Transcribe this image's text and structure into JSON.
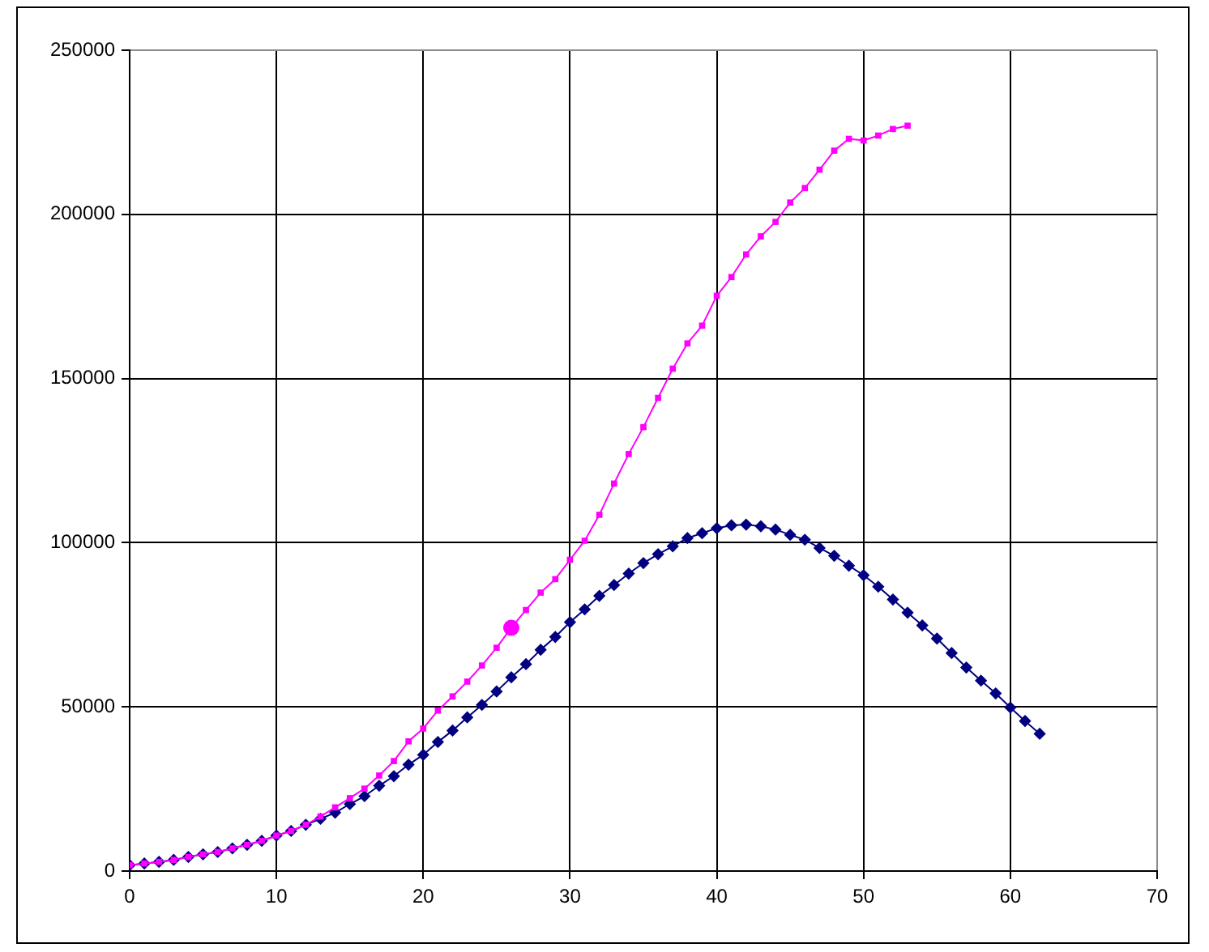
{
  "chart_data": {
    "type": "line",
    "xlim": [
      0,
      70
    ],
    "xticks": [
      0,
      10,
      20,
      30,
      40,
      50,
      60,
      70
    ],
    "ylim": [
      0,
      250000
    ],
    "yticks": [
      0,
      50000,
      100000,
      150000,
      200000,
      250000
    ],
    "grid": true,
    "series": [
      {
        "color": "#000080",
        "marker": "diamond",
        "x": [
          0,
          1,
          2,
          3,
          4,
          5,
          6,
          7,
          8,
          9,
          10,
          11,
          12,
          13,
          14,
          15,
          16,
          17,
          18,
          19,
          20,
          21,
          22,
          23,
          24,
          25,
          26,
          27,
          28,
          29,
          30,
          31,
          32,
          33,
          34,
          35,
          36,
          37,
          38,
          39,
          40,
          41,
          42,
          43,
          44,
          45,
          46,
          47,
          48,
          49,
          50,
          51,
          52,
          53,
          54,
          55,
          56,
          57,
          58,
          59,
          60,
          61,
          62
        ],
        "values": [
          1800,
          2300,
          2800,
          3400,
          4300,
          5100,
          5800,
          6900,
          8000,
          9200,
          10800,
          12200,
          14100,
          15900,
          17800,
          20400,
          22800,
          26000,
          28900,
          32400,
          35400,
          39300,
          42800,
          46800,
          50600,
          54700,
          59000,
          63000,
          67400,
          71300,
          75800,
          79700,
          83800,
          87100,
          90600,
          93800,
          96500,
          98900,
          101400,
          102900,
          104400,
          105300,
          105500,
          105000,
          104000,
          102400,
          100900,
          98400,
          96000,
          93000,
          90100,
          86600,
          82700,
          78700,
          74800,
          70800,
          66400,
          62000,
          58000,
          54100,
          49800,
          45700,
          41800
        ]
      },
      {
        "color": "#ff00ff",
        "marker": "square",
        "x": [
          0,
          1,
          2,
          3,
          4,
          5,
          6,
          7,
          8,
          9,
          10,
          11,
          12,
          13,
          14,
          15,
          16,
          17,
          18,
          19,
          20,
          21,
          22,
          23,
          24,
          25,
          26,
          27,
          28,
          29,
          30,
          31,
          32,
          33,
          34,
          35,
          36,
          37,
          38,
          39,
          40,
          41,
          42,
          43,
          44,
          45,
          46,
          47,
          48,
          49,
          50,
          51,
          52,
          53
        ],
        "values": [
          1800,
          2300,
          2800,
          3400,
          4300,
          5100,
          5800,
          6900,
          8000,
          9200,
          10800,
          12200,
          14100,
          16600,
          19400,
          22200,
          25100,
          29100,
          33500,
          39500,
          43400,
          48900,
          53200,
          57700,
          62600,
          68000,
          74100,
          79500,
          84800,
          88900,
          94800,
          100600,
          108500,
          118000,
          127000,
          135200,
          144100,
          153000,
          160700,
          166100,
          175200,
          180900,
          187800,
          193300,
          197700,
          203600,
          208000,
          213600,
          219400,
          223000,
          222500,
          224000,
          226000,
          227000
        ]
      },
      {
        "type": "scatter",
        "color": "#ff00ff",
        "marker": "circle",
        "x": [
          26
        ],
        "values": [
          74100
        ]
      }
    ]
  }
}
